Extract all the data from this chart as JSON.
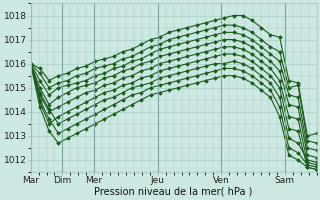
{
  "xlabel": "Pression niveau de la mer( hPa )",
  "ylim": [
    1011.5,
    1018.5
  ],
  "yticks": [
    1012,
    1013,
    1014,
    1015,
    1016,
    1017,
    1018
  ],
  "xtick_labels": [
    "Mar",
    "Dim",
    "Mer",
    "Jeu",
    "Ven",
    "Sam"
  ],
  "xtick_positions": [
    0,
    24,
    48,
    96,
    144,
    192
  ],
  "background_color": "#cde8e2",
  "grid_color": "#9fc8c0",
  "line_color": "#1a5c1a",
  "marker": "D",
  "marker_size": 2.0,
  "line_width": 0.8,
  "total_hours": 216,
  "series": [
    [
      1016.0,
      1015.8,
      1015.3,
      1015.5,
      1015.6,
      1015.8,
      1015.9,
      1016.1,
      1016.2,
      1016.3,
      1016.5,
      1016.6,
      1016.8,
      1017.0,
      1017.1,
      1017.3,
      1017.4,
      1017.5,
      1017.6,
      1017.7,
      1017.8,
      1017.9,
      1018.0,
      1018.0,
      1017.8,
      1017.5,
      1017.2,
      1017.1,
      1015.3,
      1015.2,
      1013.0,
      1013.1
    ],
    [
      1016.0,
      1015.6,
      1015.0,
      1015.2,
      1015.3,
      1015.5,
      1015.6,
      1015.8,
      1015.9,
      1016.0,
      1016.2,
      1016.3,
      1016.5,
      1016.7,
      1016.8,
      1017.0,
      1017.1,
      1017.2,
      1017.3,
      1017.4,
      1017.5,
      1017.6,
      1017.6,
      1017.5,
      1017.3,
      1017.0,
      1016.7,
      1016.5,
      1015.0,
      1015.1,
      1012.8,
      1012.7
    ],
    [
      1016.0,
      1015.3,
      1014.7,
      1015.0,
      1015.1,
      1015.2,
      1015.3,
      1015.5,
      1015.6,
      1015.8,
      1015.9,
      1016.1,
      1016.2,
      1016.4,
      1016.6,
      1016.7,
      1016.8,
      1016.9,
      1017.0,
      1017.1,
      1017.2,
      1017.3,
      1017.3,
      1017.2,
      1017.0,
      1016.7,
      1016.4,
      1016.1,
      1014.7,
      1014.6,
      1012.5,
      1012.4
    ],
    [
      1016.0,
      1015.0,
      1014.3,
      1014.6,
      1014.8,
      1015.0,
      1015.1,
      1015.2,
      1015.4,
      1015.5,
      1015.7,
      1015.8,
      1016.0,
      1016.1,
      1016.3,
      1016.4,
      1016.5,
      1016.6,
      1016.7,
      1016.8,
      1016.9,
      1017.0,
      1017.0,
      1016.9,
      1016.7,
      1016.4,
      1016.1,
      1015.7,
      1014.3,
      1014.2,
      1012.2,
      1012.1
    ],
    [
      1016.0,
      1014.7,
      1014.0,
      1014.2,
      1014.4,
      1014.6,
      1014.8,
      1014.9,
      1015.1,
      1015.2,
      1015.4,
      1015.5,
      1015.7,
      1015.8,
      1016.0,
      1016.1,
      1016.2,
      1016.3,
      1016.4,
      1016.5,
      1016.6,
      1016.7,
      1016.7,
      1016.6,
      1016.4,
      1016.1,
      1015.8,
      1015.3,
      1013.8,
      1013.7,
      1011.9,
      1011.8
    ],
    [
      1016.0,
      1014.4,
      1013.5,
      1013.8,
      1014.0,
      1014.2,
      1014.4,
      1014.6,
      1014.8,
      1014.9,
      1015.1,
      1015.2,
      1015.4,
      1015.5,
      1015.7,
      1015.8,
      1015.9,
      1016.0,
      1016.1,
      1016.2,
      1016.3,
      1016.4,
      1016.4,
      1016.3,
      1016.1,
      1015.8,
      1015.5,
      1015.0,
      1013.3,
      1013.2,
      1011.7,
      1011.6
    ],
    [
      1016.0,
      1014.8,
      1014.1,
      1013.5,
      1013.7,
      1013.9,
      1014.1,
      1014.3,
      1014.5,
      1014.6,
      1014.8,
      1015.0,
      1015.1,
      1015.2,
      1015.4,
      1015.5,
      1015.6,
      1015.7,
      1015.8,
      1015.9,
      1016.0,
      1016.0,
      1016.1,
      1016.0,
      1015.8,
      1015.5,
      1015.2,
      1014.6,
      1012.9,
      1012.7,
      1012.0,
      1011.9
    ],
    [
      1016.0,
      1014.5,
      1013.7,
      1013.1,
      1013.3,
      1013.5,
      1013.7,
      1013.9,
      1014.1,
      1014.3,
      1014.5,
      1014.7,
      1014.8,
      1015.0,
      1015.1,
      1015.2,
      1015.3,
      1015.4,
      1015.5,
      1015.6,
      1015.7,
      1015.8,
      1015.8,
      1015.7,
      1015.5,
      1015.2,
      1014.9,
      1014.2,
      1012.5,
      1012.3,
      1011.8,
      1011.7
    ],
    [
      1016.0,
      1014.2,
      1013.2,
      1012.7,
      1012.9,
      1013.1,
      1013.3,
      1013.5,
      1013.7,
      1013.9,
      1014.1,
      1014.3,
      1014.5,
      1014.7,
      1014.8,
      1014.9,
      1015.0,
      1015.1,
      1015.2,
      1015.3,
      1015.4,
      1015.5,
      1015.5,
      1015.4,
      1015.2,
      1014.9,
      1014.6,
      1013.8,
      1012.2,
      1012.0,
      1011.7,
      1011.6
    ]
  ]
}
